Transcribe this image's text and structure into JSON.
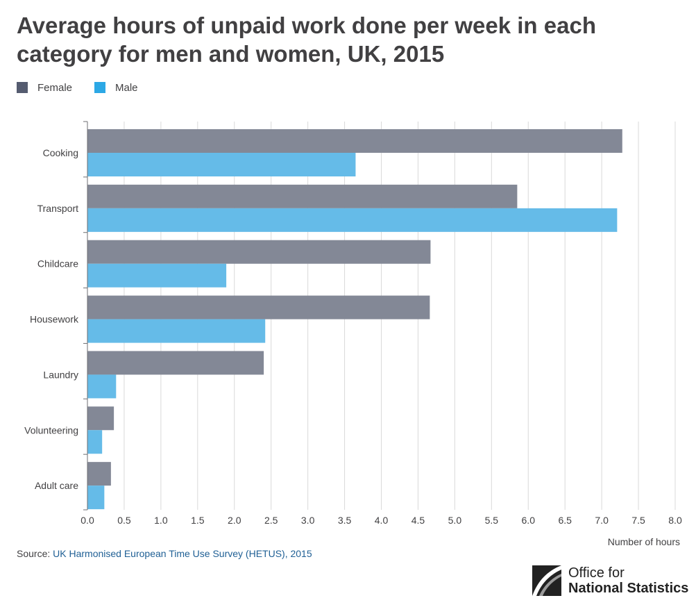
{
  "title": "Average hours of unpaid work done per week in each category for men and women, UK, 2015",
  "legend": [
    {
      "label": "Female",
      "color": "#555c70"
    },
    {
      "label": "Male",
      "color": "#2ca8e5"
    }
  ],
  "source": {
    "prefix": "Source: ",
    "link_text": "UK Harmonised European Time Use Survey (HETUS), 2015"
  },
  "logo": {
    "line1": "Office for",
    "line2": "National Statistics",
    "icon": "ons-logo-icon"
  },
  "chart_data": {
    "type": "bar",
    "orientation": "horizontal",
    "title": "Average hours of unpaid work done per week in each category for men and women, UK, 2015",
    "categories": [
      "Cooking",
      "Transport",
      "Childcare",
      "Housework",
      "Laundry",
      "Volunteering",
      "Adult care"
    ],
    "series": [
      {
        "name": "Female",
        "color": "#838896",
        "values": [
          7.28,
          5.85,
          4.67,
          4.66,
          2.4,
          0.36,
          0.32
        ]
      },
      {
        "name": "Male",
        "color": "#65bbe8",
        "values": [
          3.65,
          7.21,
          1.89,
          2.42,
          0.39,
          0.2,
          0.23
        ]
      }
    ],
    "xlabel": "Number of hours",
    "ylabel": "",
    "xlim": [
      0,
      8
    ],
    "ticks": [
      "0.0",
      "0.5",
      "1.0",
      "1.5",
      "2.0",
      "2.5",
      "3.0",
      "3.5",
      "4.0",
      "4.5",
      "5.0",
      "5.5",
      "6.0",
      "6.5",
      "7.0",
      "7.5",
      "8.0"
    ],
    "grid": true,
    "legend_position": "top-left"
  }
}
